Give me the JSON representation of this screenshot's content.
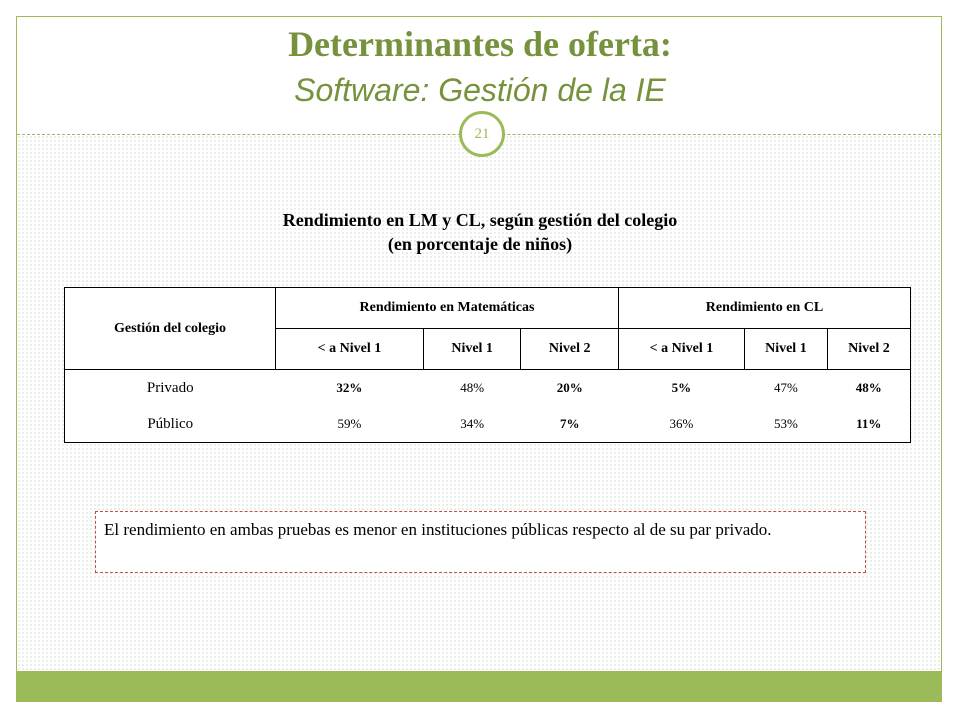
{
  "slide": {
    "title": "Determinantes de oferta:",
    "subtitle": "Software: Gestión de la IE",
    "page_number": "21"
  },
  "table_caption": {
    "line1": "Rendimiento en LM y CL, según gestión del colegio",
    "line2": "(en porcentaje de niños)"
  },
  "table": {
    "row_header": "Gestión del colegio",
    "groups": [
      "Rendimiento en Matemáticas",
      "Rendimiento en CL"
    ],
    "levels": [
      "< a Nivel 1",
      "Nivel 1",
      "Nivel 2",
      "< a Nivel 1",
      "Nivel 1",
      "Nivel 2"
    ],
    "rows": [
      {
        "label": "Privado",
        "values": [
          "32%",
          "48%",
          "20%",
          "5%",
          "47%",
          "48%"
        ],
        "bold": [
          true,
          false,
          true,
          true,
          false,
          true
        ]
      },
      {
        "label": "Público",
        "values": [
          "59%",
          "34%",
          "7%",
          "36%",
          "53%",
          "11%"
        ],
        "bold": [
          false,
          false,
          true,
          false,
          false,
          true
        ]
      }
    ]
  },
  "note": {
    "text": "El rendimiento en ambas pruebas es menor en instituciones públicas respecto al de su par privado."
  },
  "colors": {
    "accent": "#9bbb59",
    "title": "#76923c",
    "note_border": "#c0504d"
  }
}
